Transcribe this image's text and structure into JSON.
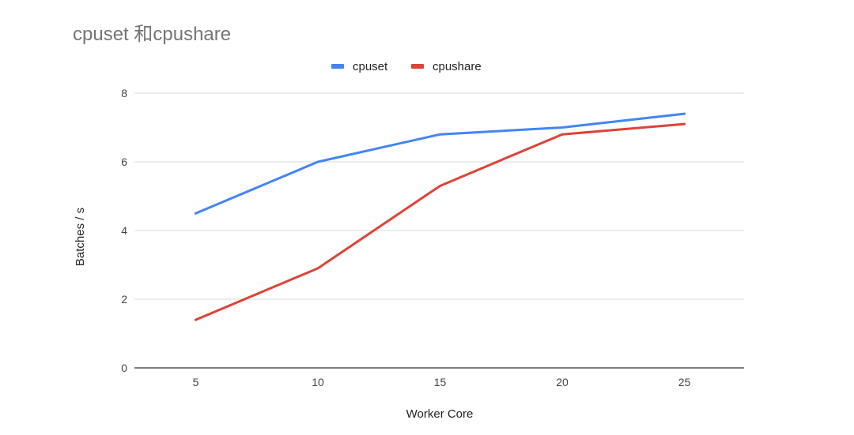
{
  "chart_data": {
    "type": "line",
    "title": "cpuset 和cpushare",
    "xlabel": "Worker Core",
    "ylabel": "Batches / s",
    "x": [
      5,
      10,
      15,
      20,
      25
    ],
    "x_ticks": [
      "5",
      "10",
      "15",
      "20",
      "25"
    ],
    "y_ticks": [
      "0",
      "2",
      "4",
      "6",
      "8"
    ],
    "ylim": [
      0,
      8
    ],
    "grid": true,
    "legend_position": "top",
    "series": [
      {
        "name": "cpuset",
        "color": "#4285f4",
        "values": [
          4.5,
          6.0,
          6.8,
          7.0,
          7.4
        ]
      },
      {
        "name": "cpushare",
        "color": "#db4437",
        "values": [
          1.4,
          2.9,
          5.3,
          6.8,
          7.1
        ]
      }
    ]
  }
}
